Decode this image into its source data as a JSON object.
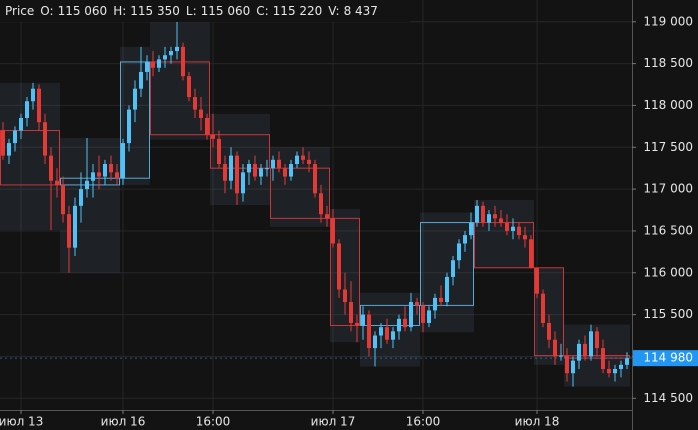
{
  "chart_data": {
    "type": "candlestick",
    "legend": {
      "label": "Price",
      "fields": [
        {
          "name": "O:",
          "value": "115 060"
        },
        {
          "name": "H:",
          "value": "115 350"
        },
        {
          "name": "L:",
          "value": "115 060"
        },
        {
          "name": "C:",
          "value": "115 220"
        },
        {
          "name": "V:",
          "value": "8 437"
        }
      ]
    },
    "up_color": "#4fc3f7",
    "down_color": "#e53935",
    "ylim": [
      114360,
      119260
    ],
    "yticks": [
      {
        "value": 114500,
        "label": "114 500"
      },
      {
        "value": 115000,
        "label": "115 000"
      },
      {
        "value": 115500,
        "label": "115 500"
      },
      {
        "value": 116000,
        "label": "116 000"
      },
      {
        "value": 116500,
        "label": "116 500"
      },
      {
        "value": 117000,
        "label": "117 000"
      },
      {
        "value": 117500,
        "label": "117 500"
      },
      {
        "value": 118000,
        "label": "118 000"
      },
      {
        "value": 118500,
        "label": "118 500"
      },
      {
        "value": 119000,
        "label": "119 000"
      }
    ],
    "xticks": [
      {
        "value": 3,
        "label": "июл 13"
      },
      {
        "value": 20,
        "label": "июл 16"
      },
      {
        "value": 35,
        "label": "16:00"
      },
      {
        "value": 55,
        "label": "июл 17"
      },
      {
        "value": 70,
        "label": "16:00"
      },
      {
        "value": 89,
        "label": "июл 18"
      }
    ],
    "grid": true,
    "last_price": {
      "value": 114980,
      "label": "114 980"
    },
    "candles": {
      "open": [
        117700,
        117400,
        117550,
        117700,
        117850,
        118050,
        118200,
        117800,
        117400,
        117100,
        117050,
        116700,
        116300,
        116800,
        117000,
        117100,
        117200,
        117150,
        117300,
        117200,
        117130,
        117550,
        117950,
        118200,
        118400,
        118520,
        118450,
        118550,
        118600,
        118650,
        118700,
        118350,
        118100,
        117950,
        117850,
        117650,
        117600,
        117300,
        117100,
        117400,
        116950,
        117200,
        117300,
        117150,
        117250,
        117250,
        117350,
        117250,
        117150,
        117300,
        117400,
        117350,
        117300,
        116950,
        116700,
        116650,
        116350,
        115800,
        115650,
        115400,
        115370,
        115500,
        115100,
        115250,
        115350,
        115200,
        115300,
        115450,
        115350,
        115650,
        115610,
        115400,
        115550,
        115700,
        115650,
        115950,
        116150,
        116350,
        116450,
        116600,
        116800,
        116600,
        116700,
        116650,
        116600,
        116500,
        116550,
        116450,
        116400,
        116060,
        115750,
        115400,
        115200,
        115000,
        115010,
        114800,
        114950,
        115150,
        115000,
        115300,
        115100,
        114850,
        114800,
        114850,
        114900
      ],
      "high": [
        117800,
        117600,
        117750,
        117900,
        118100,
        118270,
        118250,
        117900,
        117500,
        117250,
        117150,
        116800,
        116900,
        117200,
        117610,
        117300,
        117400,
        117350,
        117400,
        117300,
        117600,
        118000,
        118300,
        118700,
        118600,
        118650,
        118600,
        118700,
        118700,
        119000,
        118750,
        118400,
        118200,
        118100,
        117900,
        117900,
        117700,
        117400,
        117500,
        117450,
        117300,
        117350,
        117400,
        117300,
        117350,
        117400,
        117450,
        117300,
        117350,
        117450,
        117500,
        117450,
        117350,
        117050,
        116800,
        116760,
        116400,
        116000,
        115900,
        115500,
        115600,
        115550,
        115300,
        115400,
        115450,
        115350,
        115500,
        115600,
        115760,
        115700,
        115650,
        115600,
        115750,
        115850,
        116000,
        116200,
        116400,
        116500,
        116720,
        116870,
        116850,
        116750,
        116800,
        116750,
        116700,
        116650,
        116600,
        116550,
        116450,
        116060,
        115800,
        115500,
        115300,
        115150,
        115100,
        115000,
        115200,
        115250,
        115380,
        115350,
        115200,
        114950,
        114900,
        114950,
        115050
      ],
      "low": [
        117350,
        117300,
        117450,
        117600,
        117750,
        117950,
        117700,
        117300,
        116510,
        116900,
        116600,
        116000,
        116200,
        116600,
        116900,
        116900,
        117000,
        117050,
        117100,
        117050,
        117050,
        117450,
        117800,
        118100,
        118300,
        118350,
        118400,
        118450,
        118500,
        118550,
        118300,
        118050,
        117850,
        117700,
        117590,
        117500,
        117250,
        116950,
        117000,
        116810,
        116850,
        117050,
        117100,
        117050,
        117150,
        117100,
        117200,
        117050,
        117100,
        117250,
        117300,
        117200,
        116900,
        116600,
        116550,
        116300,
        115700,
        115500,
        115300,
        115170,
        115200,
        115000,
        114880,
        115100,
        115150,
        115100,
        115200,
        115300,
        115300,
        115500,
        115290,
        115350,
        115450,
        115600,
        115600,
        115850,
        116050,
        116250,
        116400,
        116550,
        116550,
        116500,
        116550,
        116550,
        116450,
        116400,
        116400,
        116300,
        116050,
        115700,
        115350,
        115100,
        114900,
        114950,
        114700,
        114640,
        114850,
        114950,
        114950,
        115000,
        114800,
        114750,
        114700,
        114750,
        114850
      ],
      "close": [
        117400,
        117550,
        117700,
        117850,
        118050,
        118200,
        117800,
        117400,
        117100,
        117050,
        116700,
        116300,
        116800,
        117000,
        117100,
        117200,
        117150,
        117300,
        117200,
        117130,
        117550,
        117950,
        118200,
        118400,
        118520,
        118450,
        118550,
        118600,
        118650,
        118700,
        118350,
        118100,
        117950,
        117850,
        117650,
        117600,
        117300,
        117100,
        117400,
        116950,
        117200,
        117300,
        117150,
        117250,
        117250,
        117350,
        117250,
        117150,
        117300,
        117400,
        117350,
        117300,
        116950,
        116700,
        116650,
        116350,
        115800,
        115650,
        115400,
        115370,
        115500,
        115100,
        115250,
        115350,
        115200,
        115300,
        115450,
        115350,
        115650,
        115610,
        115400,
        115550,
        115700,
        115650,
        115950,
        116150,
        116350,
        116450,
        116600,
        116800,
        116600,
        116700,
        116650,
        116600,
        116500,
        116550,
        116450,
        116400,
        116060,
        115750,
        115400,
        115200,
        115000,
        115010,
        114800,
        114950,
        115150,
        115000,
        115300,
        115100,
        114850,
        114800,
        114850,
        114900,
        114980
      ]
    },
    "periods": [
      {
        "start": 0,
        "end": 9,
        "open": 117700,
        "high": 118270,
        "low": 116510,
        "close": 117050
      },
      {
        "start": 10,
        "end": 19,
        "open": 117050,
        "high": 117610,
        "low": 116000,
        "close": 117130
      },
      {
        "start": 20,
        "end": 24,
        "open": 117130,
        "high": 118700,
        "low": 117050,
        "close": 118520
      },
      {
        "start": 25,
        "end": 34,
        "open": 118520,
        "high": 119000,
        "low": 117590,
        "close": 117650
      },
      {
        "start": 35,
        "end": 44,
        "open": 117650,
        "high": 117900,
        "low": 116810,
        "close": 117250
      },
      {
        "start": 45,
        "end": 54,
        "open": 117250,
        "high": 117500,
        "low": 116550,
        "close": 116650
      },
      {
        "start": 55,
        "end": 59,
        "open": 116650,
        "high": 116760,
        "low": 115170,
        "close": 115370
      },
      {
        "start": 60,
        "end": 69,
        "open": 115370,
        "high": 115760,
        "low": 114880,
        "close": 115610
      },
      {
        "start": 70,
        "end": 78,
        "open": 115610,
        "high": 116720,
        "low": 115290,
        "close": 116600
      },
      {
        "start": 79,
        "end": 88,
        "open": 116600,
        "high": 116870,
        "low": 116050,
        "close": 116060
      },
      {
        "start": 89,
        "end": 93,
        "open": 116060,
        "high": 116060,
        "low": 114900,
        "close": 115010
      },
      {
        "start": 94,
        "end": 104,
        "open": 115010,
        "high": 115380,
        "low": 114640,
        "close": 114980
      }
    ]
  }
}
